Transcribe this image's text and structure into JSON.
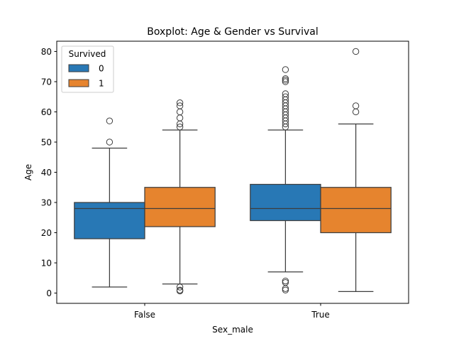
{
  "chart_data": {
    "type": "boxplot",
    "title": "Boxplot: Age & Gender vs Survival",
    "xlabel": "Sex_male",
    "ylabel": "Age",
    "categories": [
      "False",
      "True"
    ],
    "ylim": [
      -3.4,
      83.4
    ],
    "yticks": [
      0,
      10,
      20,
      30,
      40,
      50,
      60,
      70,
      80
    ],
    "ytick_labels": [
      "0",
      "10",
      "20",
      "30",
      "40",
      "50",
      "60",
      "70",
      "80"
    ],
    "grid": false,
    "legend": {
      "title": "Survived",
      "placement": "upper-left",
      "entries": [
        "0",
        "1"
      ]
    },
    "series": [
      {
        "name": "0",
        "color": "#2878b5",
        "boxes": [
          {
            "category": "False",
            "whisker_low": 2,
            "q1": 18,
            "median": 28,
            "q3": 30,
            "whisker_high": 48,
            "outliers": [
              50,
              57
            ]
          },
          {
            "category": "True",
            "whisker_low": 7,
            "q1": 24,
            "median": 28,
            "q3": 36,
            "whisker_high": 54,
            "outliers": [
              1,
              1.5,
              3.5,
              4,
              55,
              56,
              57,
              58,
              59,
              60,
              61,
              62,
              63,
              64,
              65,
              66,
              70,
              70.5,
              71,
              74
            ]
          }
        ]
      },
      {
        "name": "1",
        "color": "#e6842e",
        "boxes": [
          {
            "category": "False",
            "whisker_low": 3,
            "q1": 22,
            "median": 28,
            "q3": 35,
            "whisker_high": 54,
            "outliers": [
              0.7,
              1,
              2,
              55,
              56,
              58,
              60,
              62,
              63
            ]
          },
          {
            "category": "True",
            "whisker_low": 0.5,
            "q1": 20,
            "median": 28,
            "q3": 35,
            "whisker_high": 56,
            "outliers": [
              60,
              62,
              80
            ]
          }
        ]
      }
    ]
  }
}
